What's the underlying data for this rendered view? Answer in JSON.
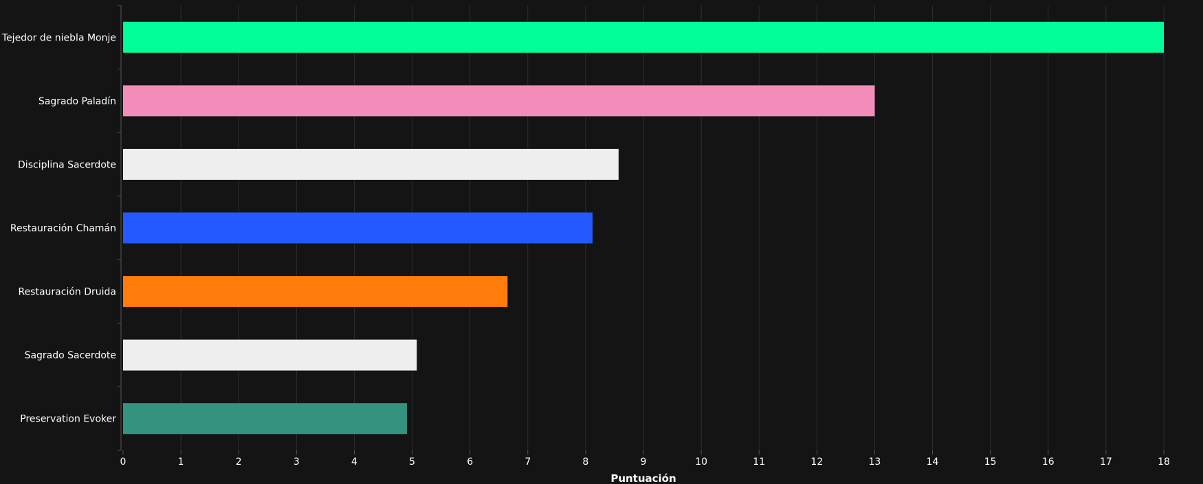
{
  "chart_data": {
    "type": "bar",
    "orientation": "horizontal",
    "title": "",
    "xlabel": "Puntuación",
    "ylabel": "",
    "xlim": [
      0,
      18
    ],
    "xticks": [
      "0",
      "1",
      "2",
      "3",
      "4",
      "5",
      "6",
      "7",
      "8",
      "9",
      "10",
      "11",
      "12",
      "13",
      "14",
      "15",
      "16",
      "17",
      "18"
    ],
    "grid": true,
    "categories": [
      "Tejedor de niebla Monje",
      "Sagrado Paladín",
      "Disciplina Sacerdote",
      "Restauración Chamán",
      "Restauración Druida",
      "Sagrado Sacerdote",
      "Preservation Evoker"
    ],
    "values": [
      18.0,
      13.0,
      8.57,
      8.12,
      6.65,
      5.08,
      4.91
    ],
    "colors": [
      "#00FF98",
      "#F48CBA",
      "#EEEEEE",
      "#2459FF",
      "#FF7C0A",
      "#EEEEEE",
      "#33937F"
    ],
    "background": "#141414",
    "text_color": "#FFFFFF",
    "grid_color": "#2E2E2E"
  }
}
